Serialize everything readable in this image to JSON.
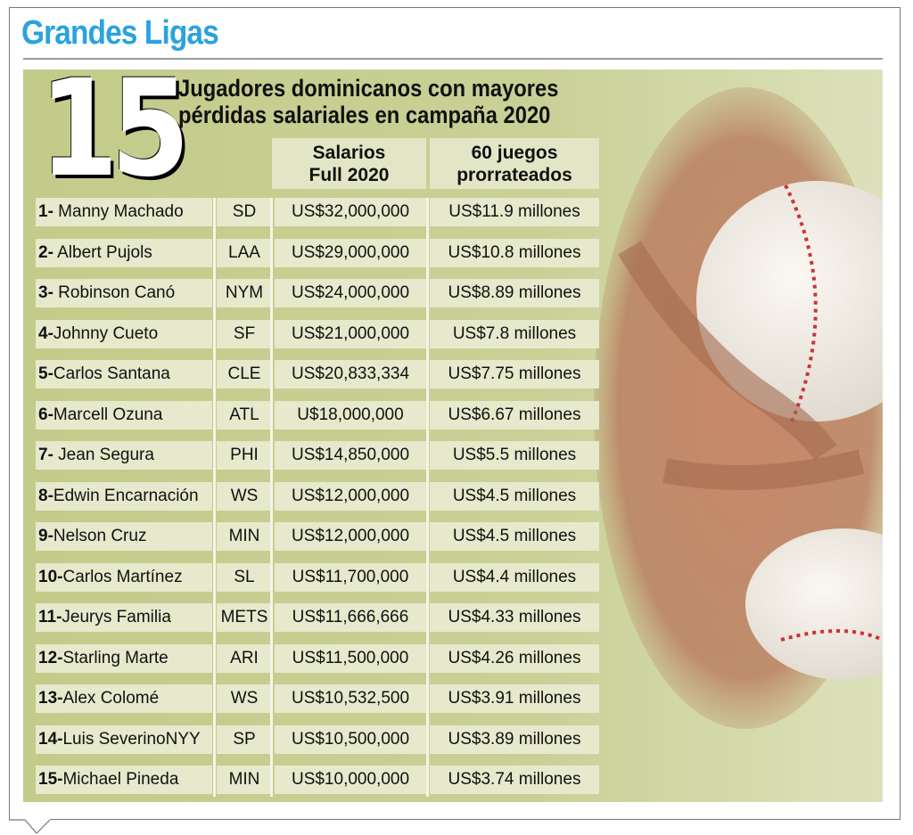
{
  "header": {
    "title": "Grandes Ligas"
  },
  "hero": {
    "number": "15",
    "headline_line1": "Jugadores dominicanos con mayores",
    "headline_line2": "pérdidas salariales en campaña 2020"
  },
  "columns": {
    "salary_line1": "Salarios",
    "salary_line2": "Full 2020",
    "prorated_line1": "60 juegos",
    "prorated_line2": "prorrateados"
  },
  "rows": [
    {
      "rank": "1-",
      "name": " Manny Machado",
      "team": "SD",
      "salary": "US$32,000,000",
      "prorated": "US$11.9 millones"
    },
    {
      "rank": "2-",
      "name": " Albert Pujols",
      "team": "LAA",
      "salary": "US$29,000,000",
      "prorated": "US$10.8 millones"
    },
    {
      "rank": "3-",
      "name": " Robinson Canó",
      "team": "NYM",
      "salary": "US$24,000,000",
      "prorated": "US$8.89 millones"
    },
    {
      "rank": "4-",
      "name": "Johnny Cueto",
      "team": "SF",
      "salary": "US$21,000,000",
      "prorated": "US$7.8 millones"
    },
    {
      "rank": "5-",
      "name": "Carlos Santana",
      "team": "CLE",
      "salary": "US$20,833,334",
      "prorated": "US$7.75 millones"
    },
    {
      "rank": "6-",
      "name": "Marcell Ozuna",
      "team": "ATL",
      "salary": "U$18,000,000",
      "prorated": "US$6.67 millones"
    },
    {
      "rank": "7-",
      "name": " Jean Segura",
      "team": "PHI",
      "salary": "US$14,850,000",
      "prorated": "US$5.5 millones"
    },
    {
      "rank": "8-",
      "name": "Edwin Encarnación",
      "team": "WS",
      "salary": "US$12,000,000",
      "prorated": "US$4.5 millones"
    },
    {
      "rank": "9-",
      "name": "Nelson Cruz",
      "team": "MIN",
      "salary": "US$12,000,000",
      "prorated": "US$4.5 millones"
    },
    {
      "rank": "10-",
      "name": "Carlos Martínez",
      "team": "SL",
      "salary": "US$11,700,000",
      "prorated": "US$4.4 millones"
    },
    {
      "rank": "11-",
      "name": "Jeurys Familia",
      "team": "METS",
      "salary": "US$11,666,666",
      "prorated": "US$4.33 millones"
    },
    {
      "rank": "12-",
      "name": "Starling Marte",
      "team": "ARI",
      "salary": "US$11,500,000",
      "prorated": "US$4.26 millones"
    },
    {
      "rank": "13-",
      "name": "Alex Colomé",
      "team": "WS",
      "salary": "US$10,532,500",
      "prorated": "US$3.91 millones"
    },
    {
      "rank": "14-",
      "name": "Luis SeverinoNYY",
      "team": "SP",
      "salary": "US$10,500,000",
      "prorated": "US$3.89 millones"
    },
    {
      "rank": "15-",
      "name": "Michael Pineda",
      "team": "MIN",
      "salary": "US$10,000,000",
      "prorated": "US$3.74 millones"
    }
  ],
  "colors": {
    "title": "#2aa3dc",
    "panel": "#c6cd90",
    "cell": "#e6e9cc"
  }
}
